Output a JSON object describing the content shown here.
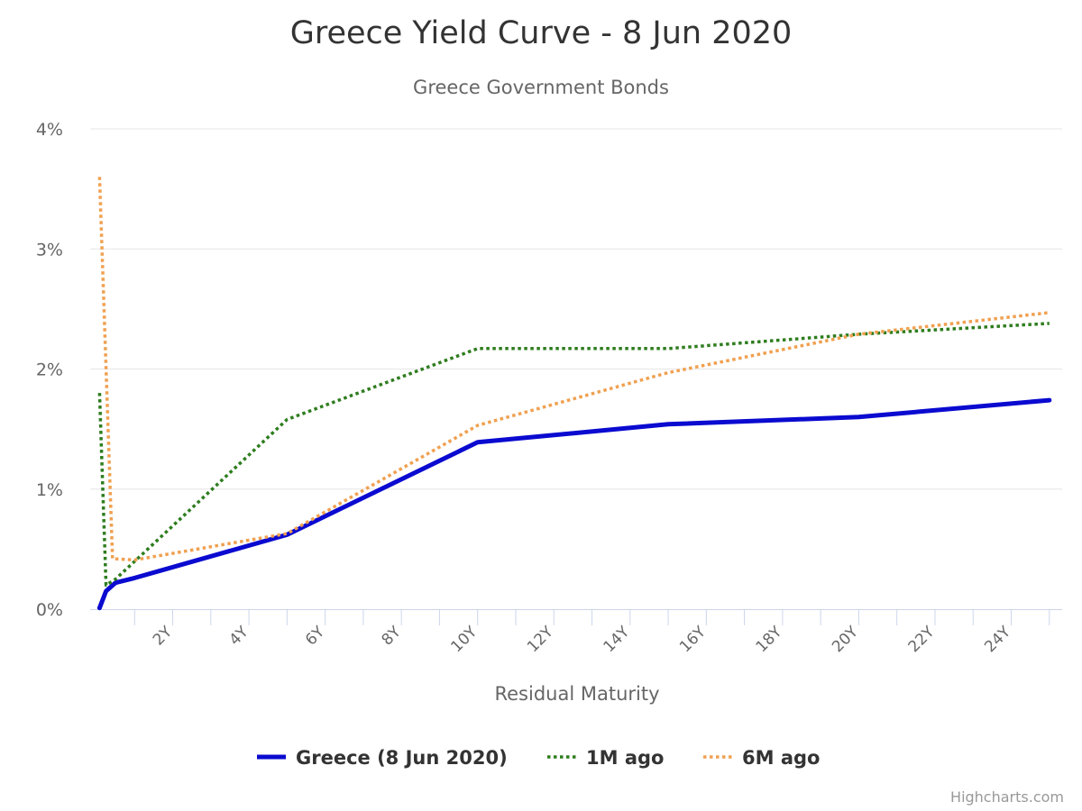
{
  "chart_data": {
    "type": "line",
    "title": "Greece Yield Curve - 8 Jun 2020",
    "subtitle": "Greece Government Bonds",
    "xlabel": "Residual Maturity",
    "ylabel": "",
    "xlim": [
      0,
      25.1
    ],
    "ylim": [
      0,
      4
    ],
    "x_ticks": [
      2,
      4,
      6,
      8,
      10,
      12,
      14,
      16,
      18,
      20,
      22,
      24
    ],
    "x_tick_labels": [
      "2Y",
      "4Y",
      "6Y",
      "8Y",
      "10Y",
      "12Y",
      "14Y",
      "16Y",
      "18Y",
      "20Y",
      "22Y",
      "24Y"
    ],
    "y_ticks": [
      0,
      1,
      2,
      3,
      4
    ],
    "y_tick_labels": [
      "0%",
      "1%",
      "2%",
      "3%",
      "4%"
    ],
    "grid": true,
    "legend_position": "bottom-center",
    "series": [
      {
        "name": "Greece (8 Jun 2020)",
        "color": "#0a0ad0",
        "style": "solid",
        "points": [
          [
            0.08,
            0.01
          ],
          [
            0.25,
            0.15
          ],
          [
            0.5,
            0.22
          ],
          [
            1,
            0.26
          ],
          [
            5,
            0.62
          ],
          [
            10,
            1.39
          ],
          [
            15,
            1.54
          ],
          [
            20,
            1.6
          ],
          [
            25,
            1.74
          ]
        ]
      },
      {
        "name": "1M ago",
        "color": "#2e7d1e",
        "style": "dotted",
        "points": [
          [
            0.08,
            1.8
          ],
          [
            0.25,
            0.2
          ],
          [
            0.5,
            0.25
          ],
          [
            5,
            1.58
          ],
          [
            10,
            2.17
          ],
          [
            15,
            2.17
          ],
          [
            20,
            2.29
          ],
          [
            25,
            2.38
          ]
        ]
      },
      {
        "name": "6M ago",
        "color": "#f0a050",
        "style": "dotted",
        "points": [
          [
            0.08,
            3.6
          ],
          [
            0.42,
            0.42
          ],
          [
            1,
            0.41
          ],
          [
            5,
            0.63
          ],
          [
            10,
            1.53
          ],
          [
            15,
            1.97
          ],
          [
            20,
            2.29
          ],
          [
            25,
            2.47
          ]
        ]
      }
    ]
  },
  "credits": "Highcharts.com"
}
